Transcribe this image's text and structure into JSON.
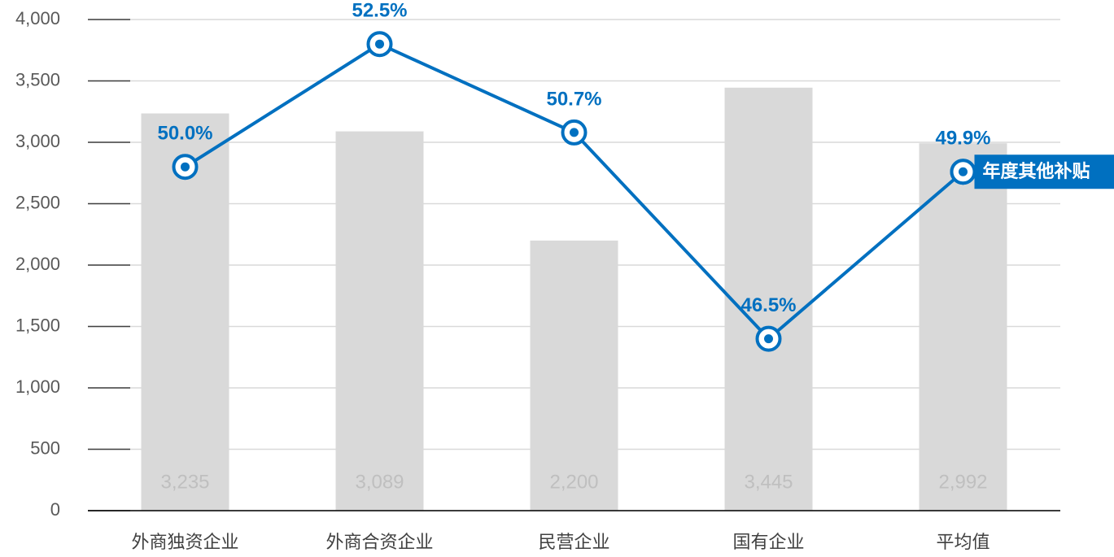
{
  "chart_data": {
    "type": "bar_line",
    "categories": [
      "外商独资企业",
      "外商合资企业",
      "民营企业",
      "国有企业",
      "平均值"
    ],
    "series": [
      {
        "type": "bar",
        "color": "#d9d9d9",
        "values": [
          3235,
          3089,
          2200,
          3445,
          2992
        ],
        "value_labels": [
          "3,235",
          "3,089",
          "2,200",
          "3,445",
          "2,992"
        ]
      },
      {
        "type": "line",
        "name": "年度其他补贴",
        "color": "#0070c0",
        "axis": "y2",
        "values": [
          50.0,
          52.5,
          50.7,
          46.5,
          49.9
        ],
        "value_labels": [
          "50.0%",
          "52.5%",
          "50.7%",
          "46.5%",
          "49.9%"
        ]
      }
    ],
    "ylim": [
      0,
      4000
    ],
    "yticks": [
      0,
      500,
      {
        "value": 1000,
        "label": "1,000"
      },
      {
        "value": 1500,
        "label": "1,500"
      },
      {
        "value": 2000,
        "label": "2,000"
      },
      {
        "value": 2500,
        "label": "2,500"
      },
      {
        "value": 3000,
        "label": "3,000"
      },
      {
        "value": 3500,
        "label": "3,500"
      },
      {
        "value": 4000,
        "label": "4,000"
      }
    ],
    "y2lim": [
      43,
      53
    ],
    "grid": true
  }
}
